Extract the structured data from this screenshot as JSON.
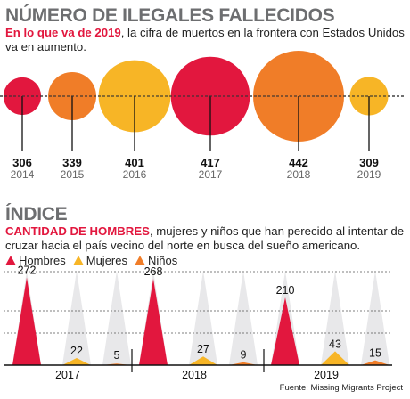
{
  "colors": {
    "red": "#e2173e",
    "orange": "#f07d28",
    "yellow": "#f7b526",
    "gray_title": "#6d6e70",
    "ghost": "#e8e8ea"
  },
  "section1": {
    "title": "NÚMERO DE ILEGALES FALLECIDOS",
    "subtitle_highlight": "En lo que va de 2019",
    "subtitle_rest": ", la cifra de muertos en la frontera con Estados Unidos va en aumento."
  },
  "section2": {
    "title": "ÍNDICE",
    "subtitle_highlight": "CANTIDAD DE HOMBRES",
    "subtitle_rest": ", mujeres y niños que han perecido al intentar de cruzar hacia el país vecino del norte en busca del sueño americano.",
    "legend": [
      {
        "label": "Hombres",
        "color": "#e2173e"
      },
      {
        "label": "Mujeres",
        "color": "#f7b526"
      },
      {
        "label": "Niños",
        "color": "#f07d28"
      }
    ]
  },
  "source": "Fuente: Missing Migrants Project",
  "chart_data": [
    {
      "type": "bubble",
      "categories": [
        "2014",
        "2015",
        "2016",
        "2017",
        "2018",
        "2019"
      ],
      "values": [
        306,
        339,
        401,
        417,
        442,
        309
      ],
      "colors": [
        "#e2173e",
        "#f07d28",
        "#f7b526",
        "#e2173e",
        "#f07d28",
        "#f7b526"
      ]
    },
    {
      "type": "bar",
      "categories": [
        "2017",
        "2018",
        "2019"
      ],
      "series": [
        {
          "name": "Hombres",
          "color": "#e2173e",
          "values": [
            272,
            268,
            210
          ]
        },
        {
          "name": "Mujeres",
          "color": "#f7b526",
          "values": [
            22,
            27,
            43
          ]
        },
        {
          "name": "Niños",
          "color": "#f07d28",
          "values": [
            5,
            9,
            15
          ]
        }
      ],
      "grid": true
    }
  ]
}
